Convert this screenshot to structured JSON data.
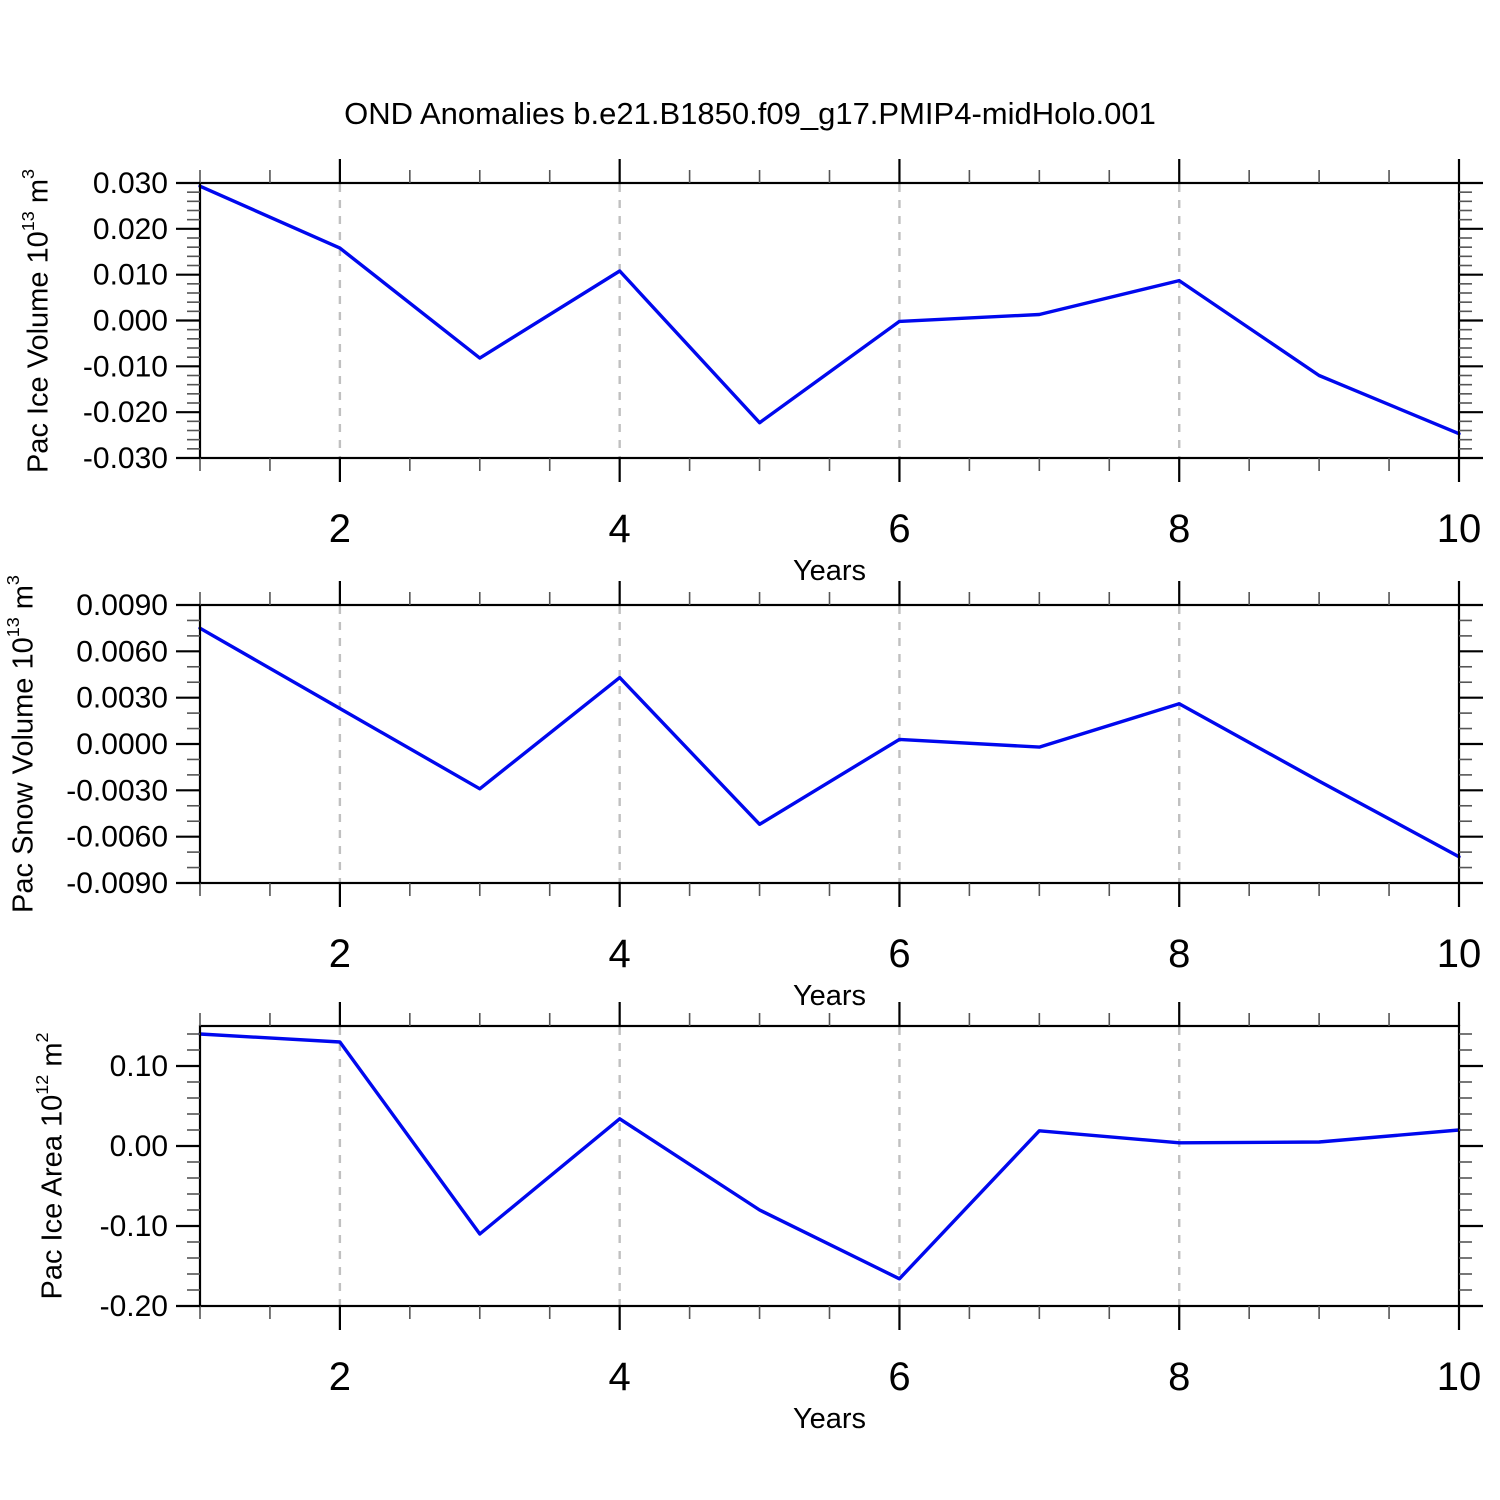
{
  "title": "OND Anomalies b.e21.B1850.f09_g17.PMIP4-midHolo.001",
  "colors": {
    "line": "#0008ee",
    "grid": "#c0c0c0",
    "axis": "#000000",
    "minor_tick": "#555555",
    "text": "#000000",
    "background": "#ffffff"
  },
  "chart_data": [
    {
      "type": "line",
      "ylabel_text": "Pac Ice Volume 10^13 m^3",
      "ylabel": {
        "text": "Pac Ice Volume 10",
        "exp": "13",
        "unit": " m",
        "unit_exp": "3"
      },
      "xlabel": "Years",
      "x": [
        1,
        2,
        3,
        4,
        5,
        6,
        7,
        8,
        9,
        10
      ],
      "values": [
        0.0293,
        0.0158,
        -0.0082,
        0.0108,
        -0.0223,
        -0.0002,
        0.0013,
        0.0087,
        -0.012,
        -0.0247
      ],
      "xlim": [
        1,
        10
      ],
      "ylim": [
        -0.03,
        0.03
      ],
      "xminor_step": 0.5,
      "xticks_labeled": [
        2,
        4,
        6,
        8,
        10
      ],
      "xtick_labels": [
        "2",
        "4",
        "6",
        "8",
        "10"
      ],
      "grid_x": [
        2,
        4,
        6,
        8
      ],
      "grid_style": "vertical-dashed",
      "ymajors": [
        0.03,
        0.02,
        0.01,
        0.0,
        -0.01,
        -0.02,
        -0.03
      ],
      "ytick_labels": [
        "0.030",
        "0.020",
        "0.010",
        "0.000",
        "-0.010",
        "-0.020",
        "-0.030"
      ],
      "yminor_step": 0.002,
      "legend": "none"
    },
    {
      "type": "line",
      "ylabel_text": "Pac Snow Volume 10^13 m^3",
      "ylabel": {
        "text": "Pac Snow Volume 10",
        "exp": "13",
        "unit": " m",
        "unit_exp": "3"
      },
      "xlabel": "Years",
      "x": [
        1,
        2,
        3,
        4,
        5,
        6,
        7,
        8,
        9,
        10
      ],
      "values": [
        0.0075,
        0.0023,
        -0.0029,
        0.0043,
        -0.0052,
        0.0003,
        -0.0002,
        0.0026,
        -0.0024,
        -0.0073
      ],
      "xlim": [
        1,
        10
      ],
      "ylim": [
        -0.009,
        0.009
      ],
      "xminor_step": 0.5,
      "xticks_labeled": [
        2,
        4,
        6,
        8,
        10
      ],
      "xtick_labels": [
        "2",
        "4",
        "6",
        "8",
        "10"
      ],
      "grid_x": [
        2,
        4,
        6,
        8
      ],
      "grid_style": "vertical-dashed",
      "ymajors": [
        0.009,
        0.006,
        0.003,
        0.0,
        -0.003,
        -0.006,
        -0.009
      ],
      "ytick_labels": [
        "0.0090",
        "0.0060",
        "0.0030",
        "0.0000",
        "-0.0030",
        "-0.0060",
        "-0.0090"
      ],
      "yminor_step": 0.001,
      "legend": "none"
    },
    {
      "type": "line",
      "ylabel_text": "Pac Ice Area 10^12 m^2",
      "ylabel": {
        "text": "Pac Ice Area 10",
        "exp": "12",
        "unit": " m",
        "unit_exp": "2"
      },
      "xlabel": "Years",
      "x": [
        1,
        2,
        3,
        4,
        5,
        6,
        7,
        8,
        9,
        10
      ],
      "values": [
        0.14,
        0.13,
        -0.11,
        0.034,
        -0.08,
        -0.166,
        0.019,
        0.004,
        0.005,
        0.02
      ],
      "xlim": [
        1,
        10
      ],
      "ylim": [
        -0.2,
        0.15
      ],
      "xminor_step": 0.5,
      "xticks_labeled": [
        2,
        4,
        6,
        8,
        10
      ],
      "xtick_labels": [
        "2",
        "4",
        "6",
        "8",
        "10"
      ],
      "grid_x": [
        2,
        4,
        6,
        8
      ],
      "grid_style": "vertical-dashed",
      "ymajors": [
        0.1,
        0.0,
        -0.1,
        -0.2
      ],
      "ytick_labels": [
        "0.10",
        "0.00",
        "-0.10",
        "-0.20"
      ],
      "yminor_step": 0.02,
      "legend": "none"
    }
  ]
}
